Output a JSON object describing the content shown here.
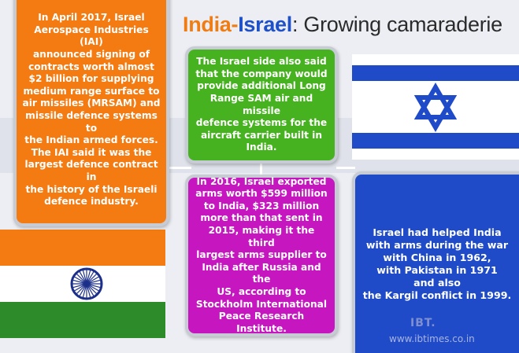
{
  "title": {
    "india": "India",
    "dash": "-",
    "israel": "Israel",
    "rest": ": Growing camaraderie"
  },
  "boxes": {
    "orange": "In April 2017, Israel\nAerospace Industries (IAI)\nannounced signing of\ncontracts worth almost\n$2 billion for supplying\nmedium range surface to\nair missiles (MRSAM) and\nmissile defence systems to\nthe Indian armed forces.\nThe IAI said it was the\nlargest defence contract in\nthe history of the Israeli\ndefence industry.",
    "green": "The Israel side also said\nthat the company would\nprovide additional Long\nRange SAM air and missile\ndefence systems for the\naircraft carrier built in\nIndia.",
    "magenta": "In 2016, Israel exported\narms worth $599 million\nto India, $323 million\nmore than that sent in\n2015, making it the third\nlargest arms supplier to\nIndia after Russia and the\nUS, according to\nStockholm International\nPeace Research Institute.",
    "blue": "Israel had helped India\nwith arms during the war\nwith China in 1962,\nwith Pakistan in 1971\nand also\nthe Kargil conflict in 1999."
  },
  "watermark": {
    "logo": "IBT.",
    "url": "www.ibtimes.co.in"
  },
  "colors": {
    "india_saffron": "#f47b12",
    "india_green": "#2e8b2a",
    "chakra_navy": "#1c2f8a",
    "israel_blue": "#1f4bc8",
    "box_green": "#46b21f",
    "box_magenta": "#c516c0"
  },
  "icons": {
    "israel_flag": "star-of-david-flag",
    "india_flag": "ashoka-chakra-flag"
  }
}
